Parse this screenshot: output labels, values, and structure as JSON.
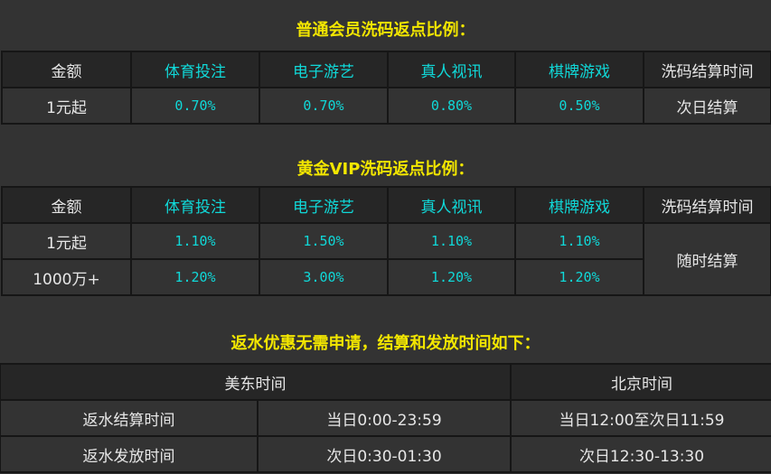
{
  "colors": {
    "title": "#f2e600",
    "category": "#10d8d8",
    "text": "#e6e6e6",
    "background": "#333333",
    "header_bg": "#262626"
  },
  "section1": {
    "title": "普通会员洗码返点比例：",
    "headers": [
      "金额",
      "体育投注",
      "电子游艺",
      "真人视讯",
      "棋牌游戏",
      "洗码结算时间"
    ],
    "rows": [
      {
        "amount": "1元起",
        "values": [
          "0.70%",
          "0.70%",
          "0.80%",
          "0.50%"
        ],
        "settle": "次日结算"
      }
    ]
  },
  "section2": {
    "title": "黄金VIP洗码返点比例：",
    "headers": [
      "金额",
      "体育投注",
      "电子游艺",
      "真人视讯",
      "棋牌游戏",
      "洗码结算时间"
    ],
    "rows": [
      {
        "amount": "1元起",
        "values": [
          "1.10%",
          "1.50%",
          "1.10%",
          "1.10%"
        ]
      },
      {
        "amount": "1000万+",
        "values": [
          "1.20%",
          "3.00%",
          "1.20%",
          "1.20%"
        ]
      }
    ],
    "settle": "随时结算"
  },
  "section3": {
    "title": "返水优惠无需申请，结算和发放时间如下：",
    "headers": [
      "美东时间",
      "北京时间"
    ],
    "rows": [
      {
        "label": "返水结算时间",
        "us_east": "当日0:00-23:59",
        "beijing": "当日12:00至次日11:59"
      },
      {
        "label": "返水发放时间",
        "us_east": "次日0:30-01:30",
        "beijing": "次日12:30-13:30"
      }
    ]
  }
}
